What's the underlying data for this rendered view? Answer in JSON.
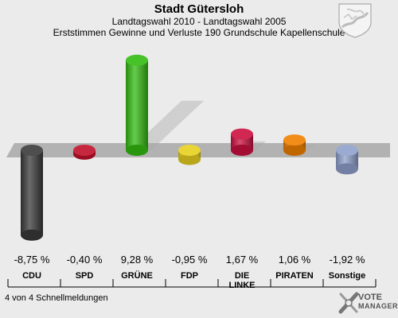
{
  "header": {
    "title": "Stadt Gütersloh",
    "subtitle": "Landtagswahl 2010 - Landtagswahl 2005",
    "subtitle2": "Erststimmen Gewinne und Verluste 190 Grundschule Kapellenschule"
  },
  "footer": {
    "note": "4 von 4 Schnellmeldungen"
  },
  "logo": {
    "line1": "VOTE",
    "line2": "MANAGER"
  },
  "colors": {
    "background": "#ebebeb",
    "baseline_band": "#a8a8a8"
  },
  "chart_data": {
    "type": "bar",
    "categories": [
      "CDU",
      "SPD",
      "GRÜNE",
      "FDP",
      "DIE LINKE",
      "PIRATEN",
      "Sonstige"
    ],
    "values": [
      -8.75,
      -0.4,
      9.28,
      -0.95,
      1.67,
      1.06,
      -1.92
    ],
    "value_labels": [
      "-8,75 %",
      "-0,40 %",
      "9,28 %",
      "-0,95 %",
      "1,67 %",
      "1,06 %",
      "-1,92 %"
    ],
    "colors": [
      "#3a3a3a",
      "#c0102a",
      "#33bb11",
      "#e8d020",
      "#cc1040",
      "#f08000",
      "#90a0cc"
    ],
    "ylim": [
      -10,
      10
    ]
  }
}
